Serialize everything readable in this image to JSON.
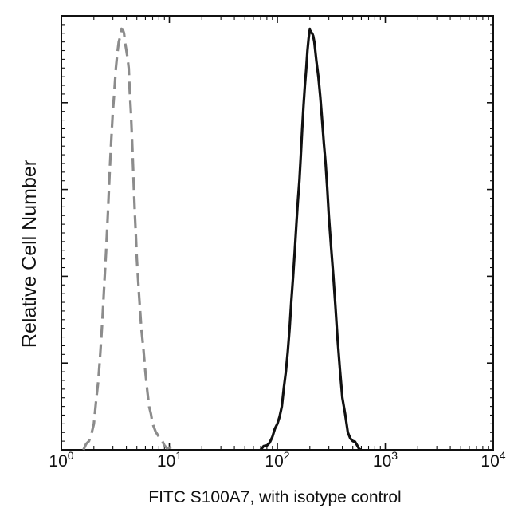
{
  "chart_data": {
    "type": "line",
    "title": "",
    "xlabel": "FITC  S100A7,  with isotype control",
    "ylabel": "Relative Cell Number",
    "x_scale": "log",
    "xlim": [
      1,
      10000
    ],
    "ylim": [
      0,
      100
    ],
    "x_ticks": [
      {
        "value": 1,
        "base": "10",
        "exp": "0"
      },
      {
        "value": 10,
        "base": "10",
        "exp": "1"
      },
      {
        "value": 100,
        "base": "10",
        "exp": "2"
      },
      {
        "value": 1000,
        "base": "10",
        "exp": "3"
      },
      {
        "value": 10000,
        "base": "10",
        "exp": "4"
      }
    ],
    "y_major_ticks": [
      0,
      20,
      40,
      60,
      80,
      100
    ],
    "grid": false,
    "legend": "none",
    "series": [
      {
        "style": "dashed",
        "color": "#8c8c8c",
        "x": [
          1.6,
          1.8,
          2.0,
          2.2,
          2.4,
          2.6,
          2.8,
          3.0,
          3.2,
          3.4,
          3.6,
          3.8,
          4.0,
          4.2,
          4.4,
          4.6,
          4.8,
          5.0,
          5.5,
          6.0,
          6.5,
          7.0,
          8.0,
          9.0,
          10.0,
          11.0
        ],
        "y": [
          0,
          2,
          6,
          16,
          30,
          46,
          64,
          78,
          88,
          94,
          97,
          96,
          92,
          88,
          78,
          66,
          54,
          44,
          28,
          18,
          10,
          6,
          3,
          1,
          0.5,
          0
        ]
      },
      {
        "style": "solid",
        "color": "#111111",
        "x": [
          70,
          80,
          90,
          100,
          110,
          120,
          130,
          140,
          150,
          160,
          170,
          180,
          190,
          200,
          210,
          220,
          240,
          260,
          280,
          300,
          330,
          360,
          400,
          450,
          500,
          550,
          600
        ],
        "y": [
          0,
          1,
          3,
          6,
          10,
          18,
          28,
          40,
          52,
          62,
          74,
          84,
          92,
          97,
          96,
          94,
          86,
          76,
          66,
          54,
          40,
          26,
          12,
          4,
          2,
          1,
          0
        ]
      }
    ]
  }
}
